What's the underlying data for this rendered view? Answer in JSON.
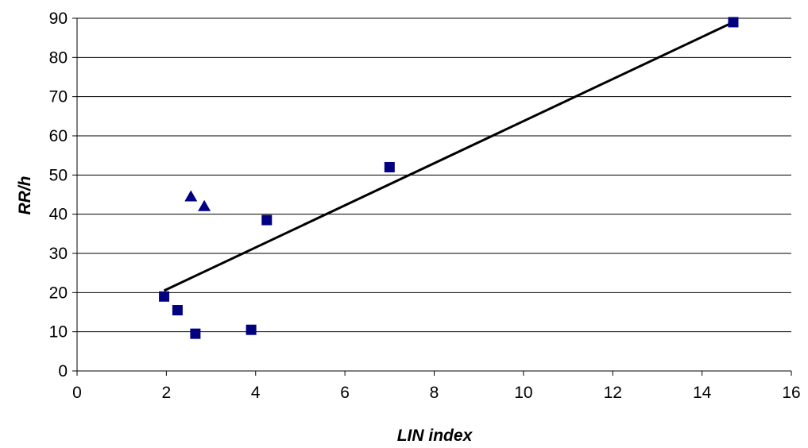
{
  "chart_data": {
    "type": "scatter",
    "title": "",
    "xlabel": "LIN index",
    "ylabel": "RR/h",
    "xlim": [
      0,
      16
    ],
    "ylim": [
      0,
      90
    ],
    "xticks": [
      0,
      2,
      4,
      6,
      8,
      10,
      12,
      14,
      16
    ],
    "yticks": [
      0,
      10,
      20,
      30,
      40,
      50,
      60,
      70,
      80,
      90
    ],
    "x_tick_labels": [
      "0",
      "2",
      "4",
      "6",
      "8",
      "10",
      "12",
      "14",
      "16"
    ],
    "y_tick_labels": [
      "0",
      "10",
      "20",
      "30",
      "40",
      "50",
      "60",
      "70",
      "80",
      "90"
    ],
    "grid": {
      "horizontal": true,
      "vertical": false
    },
    "legend": "none",
    "series": [
      {
        "marker": "square",
        "color": "#000080",
        "points": [
          {
            "x": 1.95,
            "y": 19
          },
          {
            "x": 2.25,
            "y": 15.5
          },
          {
            "x": 2.65,
            "y": 9.5
          },
          {
            "x": 3.9,
            "y": 10.5
          },
          {
            "x": 4.25,
            "y": 38.5
          },
          {
            "x": 7.0,
            "y": 52
          },
          {
            "x": 14.7,
            "y": 89
          }
        ]
      },
      {
        "marker": "triangle",
        "color": "#000080",
        "points": [
          {
            "x": 2.55,
            "y": 44.5
          },
          {
            "x": 2.85,
            "y": 42
          }
        ]
      }
    ],
    "trendline": {
      "color": "#000000",
      "start": {
        "x": 1.95,
        "y": 20.5
      },
      "end": {
        "x": 14.7,
        "y": 89
      }
    }
  }
}
